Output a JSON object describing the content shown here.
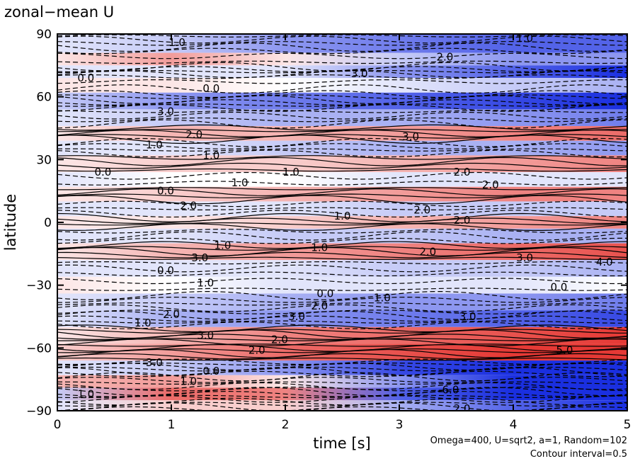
{
  "chart_data": {
    "type": "heatmap",
    "title": "zonal−mean U",
    "xlabel": "time [s]",
    "ylabel": "latitude",
    "xlim": [
      0,
      5
    ],
    "ylim": [
      -90,
      90
    ],
    "x_ticks": [
      0,
      1,
      2,
      3,
      4,
      5
    ],
    "x_tick_labels": [
      "0",
      "1",
      "2",
      "3",
      "4",
      "5"
    ],
    "y_ticks": [
      90,
      60,
      30,
      0,
      -30,
      -60,
      -90
    ],
    "y_tick_labels": [
      "90",
      "60",
      "30",
      "0",
      "−30",
      "−60",
      "−90"
    ],
    "contour_interval": 0.5,
    "colors": {
      "positive": "#e53935",
      "negative": "#1a2fe0",
      "neutral": "#ffffff"
    },
    "bands": [
      {
        "lat": 84,
        "values": [
          -0.5,
          -1.0,
          -2.0,
          -2.5,
          -3.0,
          -3.0
        ]
      },
      {
        "lat": 78,
        "values": [
          0.5,
          2.0,
          0.5,
          -1.0,
          -2.0,
          -2.0
        ]
      },
      {
        "lat": 72,
        "values": [
          -0.5,
          -0.5,
          -0.5,
          -2.0,
          -3.0,
          -4.5
        ]
      },
      {
        "lat": 66,
        "values": [
          0.5,
          0.5,
          0.0,
          -0.5,
          -1.0,
          -1.5
        ]
      },
      {
        "lat": 58,
        "values": [
          -1.0,
          -2.0,
          -2.5,
          -3.0,
          -3.5,
          -4.0
        ]
      },
      {
        "lat": 50,
        "values": [
          -0.5,
          -1.0,
          -1.5,
          -1.5,
          -2.0,
          -2.5
        ]
      },
      {
        "lat": 42,
        "values": [
          0.5,
          1.5,
          1.5,
          2.0,
          2.5,
          3.0
        ]
      },
      {
        "lat": 36,
        "values": [
          -0.5,
          -0.5,
          -1.0,
          -1.5,
          -1.5,
          -2.0
        ]
      },
      {
        "lat": 28,
        "values": [
          0.5,
          1.0,
          1.0,
          1.5,
          2.0,
          2.5
        ]
      },
      {
        "lat": 20,
        "values": [
          -0.5,
          0.0,
          0.0,
          -0.5,
          -0.5,
          -0.5
        ]
      },
      {
        "lat": 14,
        "values": [
          0.5,
          1.0,
          1.5,
          2.0,
          2.5,
          2.5
        ]
      },
      {
        "lat": 6,
        "values": [
          -0.5,
          -0.5,
          -0.5,
          -1.0,
          -1.0,
          -1.0
        ]
      },
      {
        "lat": 0,
        "values": [
          0.5,
          0.5,
          1.0,
          1.5,
          2.0,
          2.5
        ]
      },
      {
        "lat": -6,
        "values": [
          -0.5,
          -0.5,
          -1.0,
          -1.0,
          -1.5,
          -1.5
        ]
      },
      {
        "lat": -14,
        "values": [
          0.5,
          1.5,
          2.0,
          2.5,
          3.0,
          3.5
        ]
      },
      {
        "lat": -22,
        "values": [
          -0.5,
          -0.5,
          -0.5,
          -1.0,
          -1.0,
          -1.5
        ]
      },
      {
        "lat": -30,
        "values": [
          0.5,
          0.0,
          -0.5,
          -0.5,
          -0.5,
          0.0
        ]
      },
      {
        "lat": -38,
        "values": [
          -0.5,
          -1.0,
          -1.5,
          -2.0,
          -2.0,
          -2.5
        ]
      },
      {
        "lat": -46,
        "values": [
          -0.5,
          -1.5,
          -2.0,
          -2.5,
          -3.0,
          -3.5
        ]
      },
      {
        "lat": -54,
        "values": [
          0.5,
          1.5,
          2.5,
          3.0,
          3.5,
          4.0
        ]
      },
      {
        "lat": -62,
        "values": [
          1.0,
          2.0,
          3.0,
          3.5,
          4.0,
          4.5
        ]
      },
      {
        "lat": -70,
        "values": [
          -0.5,
          -1.0,
          -2.0,
          -3.5,
          -5.0,
          -6.0
        ]
      },
      {
        "lat": -76,
        "values": [
          1.5,
          2.0,
          0.5,
          -2.0,
          -4.0,
          -6.0
        ]
      },
      {
        "lat": -82,
        "values": [
          -1.0,
          3.0,
          2.5,
          -3.0,
          -6.0,
          -7.0
        ]
      },
      {
        "lat": -88,
        "values": [
          -0.5,
          1.0,
          1.0,
          -1.5,
          -3.0,
          -4.0
        ]
      }
    ],
    "contour_labels": [
      {
        "text": "1.0",
        "t": 1.05,
        "lat": 86
      },
      {
        "text": "1.0",
        "t": 4.1,
        "lat": 88
      },
      {
        "text": "3.0",
        "t": 2.65,
        "lat": 71
      },
      {
        "text": "2.0",
        "t": 3.4,
        "lat": 79
      },
      {
        "text": "0.0",
        "t": 0.25,
        "lat": 69
      },
      {
        "text": "0.0",
        "t": 1.35,
        "lat": 64
      },
      {
        "text": "3.0",
        "t": 0.95,
        "lat": 53
      },
      {
        "text": "2.0",
        "t": 1.2,
        "lat": 42
      },
      {
        "text": "3.0",
        "t": 3.1,
        "lat": 41
      },
      {
        "text": "1.0",
        "t": 0.85,
        "lat": 37
      },
      {
        "text": "1.0",
        "t": 1.35,
        "lat": 32
      },
      {
        "text": "0.0",
        "t": 0.4,
        "lat": 24
      },
      {
        "text": "1.0",
        "t": 2.05,
        "lat": 24
      },
      {
        "text": "2.0",
        "t": 3.55,
        "lat": 24
      },
      {
        "text": "1.0",
        "t": 1.6,
        "lat": 19
      },
      {
        "text": "2.0",
        "t": 3.8,
        "lat": 18
      },
      {
        "text": "0.0",
        "t": 0.95,
        "lat": 15
      },
      {
        "text": "2.0",
        "t": 1.15,
        "lat": 8
      },
      {
        "text": "1.0",
        "t": 2.5,
        "lat": 3
      },
      {
        "text": "2.0",
        "t": 3.2,
        "lat": 6
      },
      {
        "text": "2.0",
        "t": 3.55,
        "lat": 1
      },
      {
        "text": "1.0",
        "t": 1.45,
        "lat": -11
      },
      {
        "text": "1.0",
        "t": 2.3,
        "lat": -12
      },
      {
        "text": "2.0",
        "t": 3.25,
        "lat": -14
      },
      {
        "text": "3.0",
        "t": 1.25,
        "lat": -17
      },
      {
        "text": "3.0",
        "t": 4.1,
        "lat": -17
      },
      {
        "text": "4.0",
        "t": 4.8,
        "lat": -19
      },
      {
        "text": "0.0",
        "t": 0.95,
        "lat": -23
      },
      {
        "text": "1.0",
        "t": 1.3,
        "lat": -29
      },
      {
        "text": "0.0",
        "t": 2.35,
        "lat": -34
      },
      {
        "text": "1.0",
        "t": 2.85,
        "lat": -36
      },
      {
        "text": "0.0",
        "t": 4.4,
        "lat": -31
      },
      {
        "text": "2.0",
        "t": 1.0,
        "lat": -44
      },
      {
        "text": "2.0",
        "t": 2.3,
        "lat": -40
      },
      {
        "text": "3.0",
        "t": 2.1,
        "lat": -45
      },
      {
        "text": "3.0",
        "t": 3.6,
        "lat": -45
      },
      {
        "text": "1.0",
        "t": 0.75,
        "lat": -48
      },
      {
        "text": "2.0",
        "t": 1.95,
        "lat": -56
      },
      {
        "text": "3.0",
        "t": 1.3,
        "lat": -54
      },
      {
        "text": "2.0",
        "t": 1.75,
        "lat": -61
      },
      {
        "text": "3.0",
        "t": 0.85,
        "lat": -67
      },
      {
        "text": "5.0",
        "t": 4.45,
        "lat": -61
      },
      {
        "text": "0.0",
        "t": 1.35,
        "lat": -71
      },
      {
        "text": "1.0",
        "t": 1.15,
        "lat": -76
      },
      {
        "text": "1.0",
        "t": 0.25,
        "lat": -82
      },
      {
        "text": "6.0",
        "t": 3.45,
        "lat": -80
      },
      {
        "text": "2.0",
        "t": 3.55,
        "lat": -89
      }
    ],
    "footnote_params": "Omega=400, U=sqrt2, a=1, Random=102",
    "footnote_interval": "Contour interval=0.5"
  }
}
